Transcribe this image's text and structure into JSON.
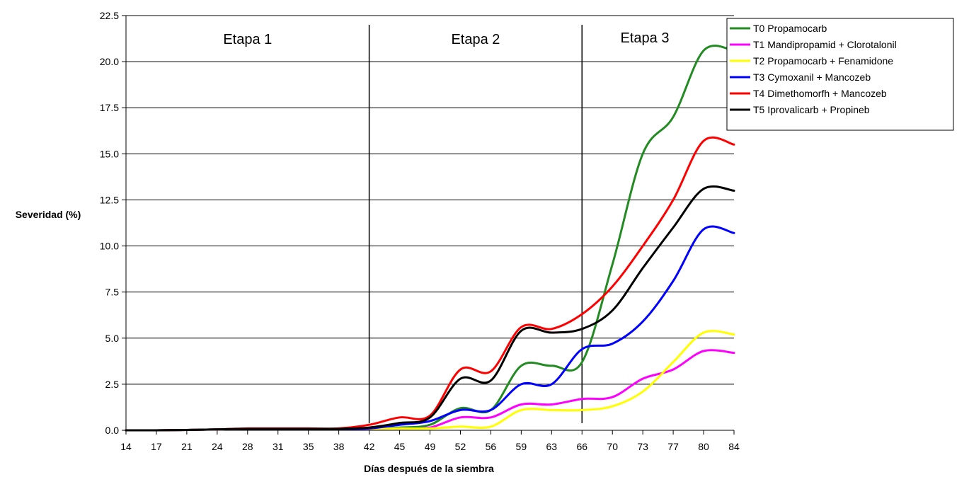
{
  "chart_data": {
    "type": "line",
    "title": "",
    "xlabel": "Días después de la siembra",
    "ylabel": "Severidad (%)",
    "ylim": [
      0,
      22.5
    ],
    "y_ticks": [
      "0.0",
      "2.5",
      "5.0",
      "7.5",
      "10.0",
      "12.5",
      "15.0",
      "17.5",
      "20.0",
      "22.5"
    ],
    "categories": [
      "14",
      "17",
      "21",
      "24",
      "28",
      "31",
      "35",
      "38",
      "42",
      "45",
      "49",
      "52",
      "56",
      "59",
      "63",
      "66",
      "70",
      "73",
      "77",
      "80",
      "84"
    ],
    "grid": "horizontal",
    "legend_position": "top-right",
    "stages": [
      {
        "label": "Etapa 1",
        "from": "14",
        "to": "42"
      },
      {
        "label": "Etapa 2",
        "from": "42",
        "to": "66"
      },
      {
        "label": "Etapa 3",
        "from": "66",
        "to": "84"
      }
    ],
    "series": [
      {
        "name": "T0 Propamocarb",
        "color": "#228b22",
        "values": [
          0,
          0,
          0.02,
          0.05,
          0.08,
          0.08,
          0.08,
          0.08,
          0.1,
          0.15,
          0.3,
          1.2,
          1.1,
          3.5,
          3.5,
          3.7,
          9.0,
          15.0,
          17.0,
          20.6,
          20.6
        ]
      },
      {
        "name": "T1 Mandipropamid + Clorotalonil",
        "color": "#ff00ff",
        "values": [
          0,
          0,
          0.02,
          0.05,
          0.08,
          0.08,
          0.08,
          0.08,
          0.08,
          0.1,
          0.15,
          0.7,
          0.7,
          1.4,
          1.4,
          1.7,
          1.8,
          2.8,
          3.3,
          4.3,
          4.2
        ]
      },
      {
        "name": "T2 Propamocarb + Fenamidone",
        "color": "#ffff00",
        "values": [
          0,
          0,
          0.02,
          0.05,
          0.08,
          0.08,
          0.08,
          0.08,
          0.08,
          0.1,
          0.1,
          0.2,
          0.2,
          1.1,
          1.1,
          1.1,
          1.3,
          2.1,
          3.7,
          5.3,
          5.2
        ]
      },
      {
        "name": "T3 Cymoxanil + Mancozeb",
        "color": "#0000ff",
        "values": [
          0,
          0,
          0.02,
          0.05,
          0.08,
          0.08,
          0.08,
          0.08,
          0.1,
          0.3,
          0.5,
          1.1,
          1.1,
          2.5,
          2.5,
          4.4,
          4.7,
          5.9,
          8.1,
          10.9,
          10.7
        ]
      },
      {
        "name": "T4 Dimethomorfh + Mancozeb",
        "color": "#ff0000",
        "values": [
          0,
          0,
          0.02,
          0.05,
          0.1,
          0.1,
          0.1,
          0.1,
          0.3,
          0.7,
          0.8,
          3.3,
          3.2,
          5.6,
          5.5,
          6.3,
          7.8,
          10.0,
          12.5,
          15.7,
          15.5
        ]
      },
      {
        "name": "T5 Iprovalicarb + Propineb",
        "color": "#000000",
        "values": [
          0,
          0,
          0.02,
          0.05,
          0.08,
          0.08,
          0.08,
          0.08,
          0.15,
          0.4,
          0.7,
          2.8,
          2.7,
          5.4,
          5.3,
          5.5,
          6.5,
          8.8,
          11.0,
          13.1,
          13.0
        ]
      }
    ]
  }
}
